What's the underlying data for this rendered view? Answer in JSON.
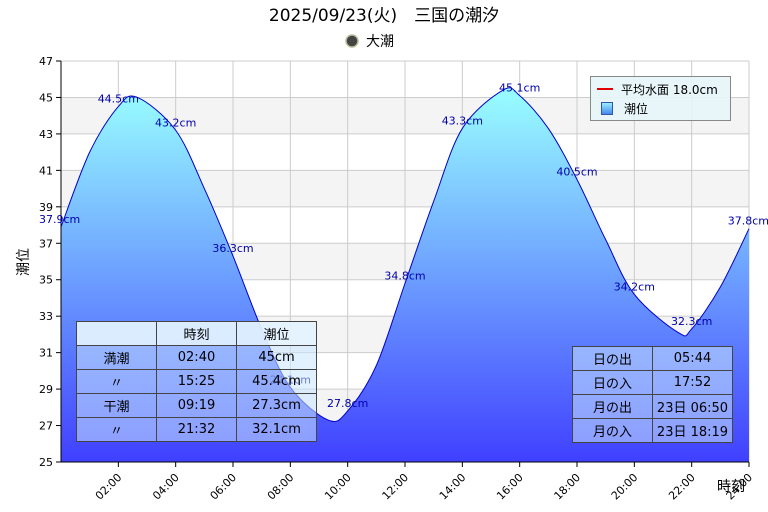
{
  "title": "2025/09/23(火)　三国の潮汐",
  "subtitle": "大潮",
  "colors": {
    "tide_top": "#99ffff",
    "tide_bottom": "#4040ff",
    "tide_line": "#0000cc",
    "mean_line": "#e00000",
    "label": "#0000aa"
  },
  "chart_data": {
    "type": "area",
    "xlabel": "時刻",
    "ylabel": "潮位",
    "xlim": [
      "00:00",
      "24:00"
    ],
    "ylim": [
      25,
      47
    ],
    "yticks": [
      25,
      27,
      29,
      31,
      33,
      35,
      37,
      39,
      41,
      43,
      45,
      47
    ],
    "xticks": [
      "02:00",
      "04:00",
      "06:00",
      "08:00",
      "10:00",
      "12:00",
      "14:00",
      "16:00",
      "18:00",
      "20:00",
      "22:00",
      "24:00"
    ],
    "mean_level": 18.0,
    "series": [
      {
        "name": "潮位",
        "points": [
          {
            "x": "00:00",
            "y": 37.9,
            "label": "37.9cm"
          },
          {
            "x": "01:00",
            "y": 42.0
          },
          {
            "x": "02:00",
            "y": 44.5,
            "label": "44.5cm"
          },
          {
            "x": "02:40",
            "y": 45.0
          },
          {
            "x": "04:00",
            "y": 43.2,
            "label": "43.2cm"
          },
          {
            "x": "05:00",
            "y": 40.0
          },
          {
            "x": "06:00",
            "y": 36.3,
            "label": "36.3cm"
          },
          {
            "x": "07:00",
            "y": 32.3
          },
          {
            "x": "08:00",
            "y": 29.1,
            "label": "29.1cm"
          },
          {
            "x": "09:19",
            "y": 27.3
          },
          {
            "x": "10:00",
            "y": 27.8,
            "label": "27.8cm"
          },
          {
            "x": "11:00",
            "y": 30.3
          },
          {
            "x": "12:00",
            "y": 34.8,
            "label": "34.8cm"
          },
          {
            "x": "13:00",
            "y": 39.3
          },
          {
            "x": "14:00",
            "y": 43.3,
            "label": "43.3cm"
          },
          {
            "x": "15:25",
            "y": 45.4
          },
          {
            "x": "16:00",
            "y": 45.1,
            "label": "45.1cm"
          },
          {
            "x": "17:00",
            "y": 43.3
          },
          {
            "x": "18:00",
            "y": 40.5,
            "label": "40.5cm"
          },
          {
            "x": "19:00",
            "y": 37.2
          },
          {
            "x": "20:00",
            "y": 34.2,
            "label": "34.2cm"
          },
          {
            "x": "21:32",
            "y": 32.1
          },
          {
            "x": "22:00",
            "y": 32.3,
            "label": "32.3cm"
          },
          {
            "x": "23:00",
            "y": 34.6
          },
          {
            "x": "24:00",
            "y": 37.8,
            "label": "37.8cm"
          }
        ]
      }
    ],
    "legend": {
      "position": "top-right",
      "entries": [
        {
          "name": "平均水面 18.0cm",
          "kind": "line"
        },
        {
          "name": "潮位",
          "kind": "area"
        }
      ]
    },
    "grid": true
  },
  "tide_table": {
    "headers": [
      "",
      "時刻",
      "潮位"
    ],
    "rows": [
      [
        "満潮",
        "02:40",
        "45cm"
      ],
      [
        "〃",
        "15:25",
        "45.4cm"
      ],
      [
        "干潮",
        "09:19",
        "27.3cm"
      ],
      [
        "〃",
        "21:32",
        "32.1cm"
      ]
    ]
  },
  "sun_moon_table": {
    "rows": [
      [
        "日の出",
        "05:44"
      ],
      [
        "日の入",
        "17:52"
      ],
      [
        "月の出",
        "23日 06:50"
      ],
      [
        "月の入",
        "23日 18:19"
      ]
    ]
  }
}
